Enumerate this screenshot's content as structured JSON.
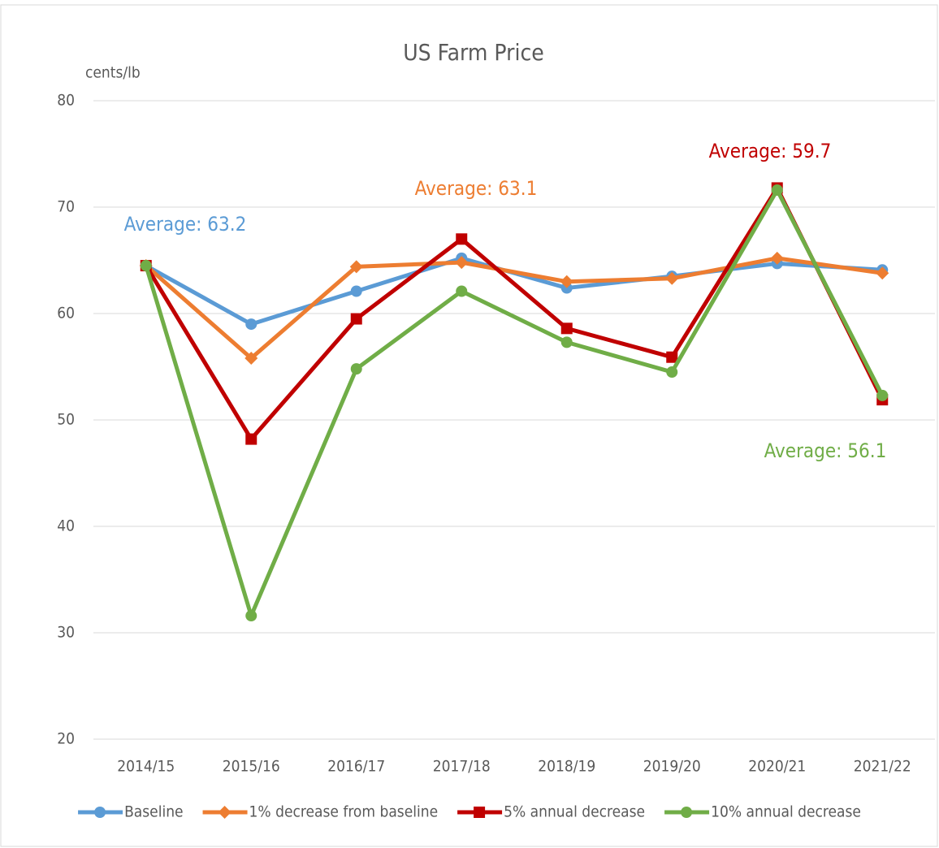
{
  "chart_data": {
    "type": "line",
    "title": "US Farm Price",
    "y_label": "cents/lb",
    "categories": [
      "2014/15",
      "2015/16",
      "2016/17",
      "2017/18",
      "2018/19",
      "2019/20",
      "2020/21",
      "2021/22"
    ],
    "series": [
      {
        "name": "Baseline",
        "color": "#5b9bd5",
        "marker": "circle",
        "values": [
          64.5,
          59.0,
          62.1,
          65.2,
          62.4,
          63.5,
          64.7,
          64.1
        ]
      },
      {
        "name": "1% decrease from baseline",
        "color": "#ed7d31",
        "marker": "diamond",
        "values": [
          64.5,
          55.8,
          64.4,
          64.8,
          63.0,
          63.3,
          65.2,
          63.8
        ]
      },
      {
        "name": "5% annual decrease",
        "color": "#c00000",
        "marker": "square",
        "values": [
          64.5,
          48.2,
          59.5,
          67.0,
          58.6,
          55.9,
          71.8,
          51.9
        ]
      },
      {
        "name": "10% annual decrease",
        "color": "#70ad47",
        "marker": "circle",
        "values": [
          64.5,
          31.6,
          54.8,
          62.1,
          57.3,
          54.5,
          71.6,
          52.3
        ]
      }
    ],
    "annotations": [
      {
        "text": "Average: 63.2",
        "color": "#5b9bd5"
      },
      {
        "text": "Average: 63.1",
        "color": "#ed7d31"
      },
      {
        "text": "Average: 59.7",
        "color": "#c00000"
      },
      {
        "text": "Average: 56.1",
        "color": "#70ad47"
      }
    ],
    "ylim": [
      20,
      80
    ],
    "yticks": [
      20,
      30,
      40,
      50,
      60,
      70,
      80
    ],
    "grid": true,
    "legend": "bottom"
  }
}
